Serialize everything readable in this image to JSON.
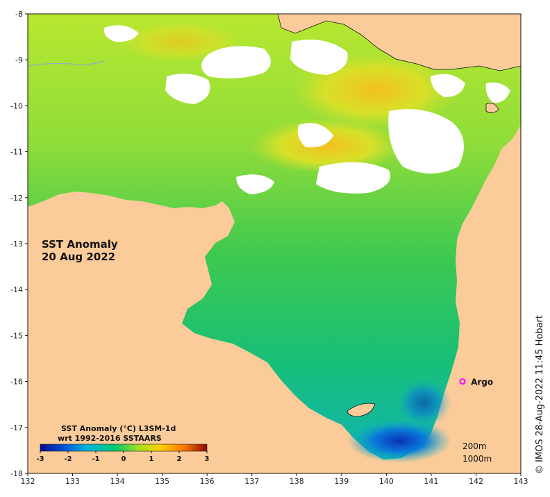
{
  "map": {
    "title_line1": "SST Anomaly",
    "title_line2": "20 Aug 2022",
    "lon_ticks": [
      "132",
      "133",
      "134",
      "135",
      "136",
      "137",
      "138",
      "139",
      "140",
      "141",
      "142",
      "143"
    ],
    "lat_ticks": [
      "-8",
      "-9",
      "-10",
      "-11",
      "-12",
      "-13",
      "-14",
      "-15",
      "-16",
      "-17",
      "-18"
    ],
    "colors": {
      "land": "#fbcb9a",
      "cloud": "#ffffff",
      "sea_warm": "#9ee23c",
      "sea_mid": "#32c85a",
      "sea_cool": "#12b7a0",
      "sea_cold": "#0a3fc8"
    }
  },
  "colorbar": {
    "title_line1": "SST Anomaly (°C) L3SM-1d",
    "title_line2": "wrt 1992-2016 SSTAARS",
    "ticks": [
      "-3",
      "-2",
      "-1",
      "0",
      "1",
      "2",
      "3"
    ],
    "colors": [
      "#08088a",
      "#0050d8",
      "#00b4e0",
      "#00c870",
      "#9ae020",
      "#ffd000",
      "#ff7800",
      "#8a0a00"
    ]
  },
  "contours": {
    "label1": "200m",
    "label2": "1000m"
  },
  "argo": {
    "label": "Argo",
    "marker_color": "#ff00ff",
    "lon": 141.7,
    "lat": -16.0
  },
  "credit": "© IMOS 28-Aug-2022 11:45 Hobart"
}
